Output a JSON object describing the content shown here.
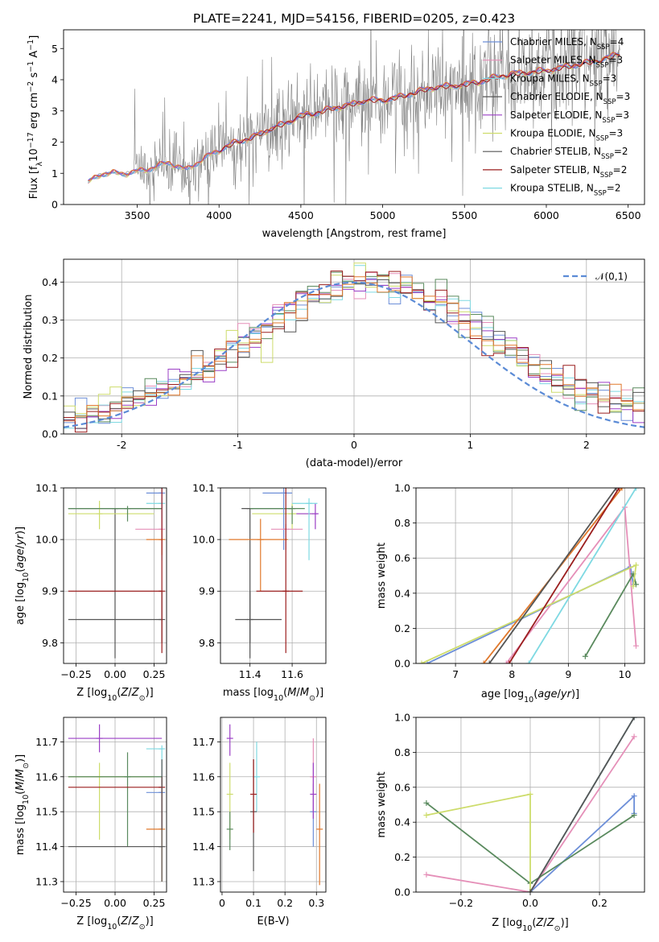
{
  "figure": {
    "title": "PLATE=2241, MJD=54156, FIBERID=0205, z=0.423"
  },
  "colors": {
    "c1": "#6d8fd8",
    "c2": "#e58fb8",
    "c3": "#7ed9e2",
    "c4": "#5a8a5e",
    "c5": "#9b3fc6",
    "c6": "#cddc6b",
    "c7": "#555555",
    "c8": "#9b1e1e",
    "c9": "#e0782b",
    "obs": "#808080",
    "normal": "#5b8bd6"
  },
  "legend_spectrum": [
    "Chabrier MILES, N_SSP=4",
    "Salpeter MILES, N_SSP=3",
    "Kroupa MILES, N_SSP=3",
    "Chabrier ELODIE, N_SSP=3",
    "Salpeter ELODIE, N_SSP=3",
    "Kroupa ELODIE, N_SSP=3",
    "Chabrier STELIB, N_SSP=2",
    "Salpeter STELIB, N_SSP=2",
    "Kroupa STELIB, N_SSP=2"
  ],
  "legend_hist": "𝒩(0,1)",
  "chart_data": [
    {
      "id": "spectrum",
      "type": "line",
      "xlabel": "wavelength [Angstrom, rest frame]",
      "ylabel": "Flux [f_λ10^-17 erg cm^-2 s^-1 A^-1]",
      "xlim": [
        3050,
        6600
      ],
      "ylim": [
        0,
        5.6
      ],
      "xticks": [
        3500,
        4000,
        4500,
        5000,
        5500,
        6000,
        6500
      ],
      "yticks": [
        0,
        1,
        2,
        3,
        4,
        5
      ],
      "model_x": [
        3200,
        3280,
        3400,
        3500,
        3600,
        3700,
        3800,
        3850,
        3950,
        4000,
        4100,
        4200,
        4300,
        4400,
        4500,
        4600,
        4700,
        4800,
        4900,
        5000,
        5100,
        5200,
        5300,
        5400,
        5500,
        5600,
        5700,
        5800,
        5900,
        6000,
        6100,
        6200,
        6300,
        6400,
        6450
      ],
      "model_y": [
        0.7,
        1.0,
        1.0,
        1.05,
        1.2,
        1.35,
        1.1,
        1.3,
        1.6,
        1.75,
        2.0,
        2.15,
        2.4,
        2.6,
        2.85,
        2.95,
        3.1,
        3.2,
        3.35,
        3.35,
        3.45,
        3.6,
        3.75,
        3.8,
        3.85,
        3.95,
        4.1,
        4.2,
        4.25,
        4.3,
        4.4,
        4.5,
        4.6,
        4.75,
        4.85
      ],
      "grid": false,
      "legend_position": "upper right"
    },
    {
      "id": "residual_hist",
      "type": "line",
      "xlabel": "(data-model)/error",
      "ylabel": "Normed distribution",
      "xlim": [
        -2.5,
        2.5
      ],
      "ylim": [
        0,
        0.46
      ],
      "xticks": [
        -2,
        -1,
        0,
        1,
        2
      ],
      "yticks": [
        0.0,
        0.1,
        0.2,
        0.3,
        0.4
      ],
      "normal_sigma": 1,
      "grid": true,
      "legend_position": "upper right"
    },
    {
      "id": "age_vs_Z",
      "type": "scatter",
      "xlabel": "Z [log10(Z/Z☉)]",
      "ylabel": "age  [log10(age/yr)]",
      "xlim": [
        -0.33,
        0.33
      ],
      "ylim": [
        9.76,
        10.1
      ],
      "xticks": [
        -0.25,
        0.0,
        0.25
      ],
      "xtick_labels": [
        "−0.25",
        "0.00",
        "0.25"
      ],
      "yticks": [
        9.8,
        9.9,
        10.0,
        10.1
      ],
      "grid": true,
      "crosses": [
        {
          "c": "c7",
          "x": 0,
          "y": 10.06,
          "x0": -0.3,
          "x1": 0.3,
          "y0": 9.77,
          "y1": 10.06
        },
        {
          "c": "c6",
          "x": -0.1,
          "y": 10.05,
          "x0": -0.3,
          "x1": 0.25,
          "y0": 10.02,
          "y1": 10.075
        },
        {
          "c": "c3",
          "x": 0.3,
          "y": 10.07,
          "x0": 0.2,
          "x1": 0.3,
          "y0": 9.96,
          "y1": 10.08
        },
        {
          "c": "c4",
          "x": 0.08,
          "y": 10.06,
          "x0": -0.3,
          "x1": 0.3,
          "y0": 10.035,
          "y1": 10.065
        },
        {
          "c": "c1",
          "x": 0.3,
          "y": 10.09,
          "x0": 0.2,
          "x1": 0.3,
          "y0": 9.98,
          "y1": 10.1
        },
        {
          "c": "c2",
          "x": 0.3,
          "y": 10.02,
          "x0": 0.13,
          "x1": 0.3,
          "y0": 9.98,
          "y1": 10.04
        },
        {
          "c": "c9",
          "x": 0.3,
          "y": 10.0,
          "x0": 0.2,
          "x1": 0.3,
          "y0": 9.97,
          "y1": 10.02
        },
        {
          "c": "c7",
          "x": 0.3,
          "y": 9.845,
          "x0": -0.3,
          "x1": 0.3,
          "y0": 9.8,
          "y1": 9.9
        },
        {
          "c": "c8",
          "x": 0.3,
          "y": 9.9,
          "x0": -0.3,
          "x1": 0.3,
          "y0": 9.78,
          "y1": 10.1
        }
      ]
    },
    {
      "id": "age_vs_mass",
      "type": "scatter",
      "xlabel": "mass [log10(M/M☉)]",
      "ylabel": "",
      "xlim": [
        11.26,
        11.76
      ],
      "ylim": [
        9.76,
        10.1
      ],
      "xticks": [
        11.4,
        11.6
      ],
      "xtick_labels": [
        "11.4",
        "11.6"
      ],
      "yticks": [
        9.8,
        9.9,
        10.0,
        10.1
      ],
      "grid": true,
      "crosses": [
        {
          "c": "c7",
          "x": 11.4,
          "y": 10.06,
          "x0": 11.36,
          "x1": 11.6,
          "y0": 9.77,
          "y1": 10.06
        },
        {
          "c": "c6",
          "x": 11.6,
          "y": 10.05,
          "x0": 11.41,
          "x1": 11.7,
          "y0": 10.02,
          "y1": 10.07
        },
        {
          "c": "c5",
          "x": 11.71,
          "y": 10.05,
          "x0": 11.62,
          "x1": 11.72,
          "y0": 10.02,
          "y1": 10.07
        },
        {
          "c": "c3",
          "x": 11.68,
          "y": 10.07,
          "x0": 11.6,
          "x1": 11.72,
          "y0": 9.96,
          "y1": 10.08
        },
        {
          "c": "c4",
          "x": 11.6,
          "y": 10.06,
          "x0": 11.4,
          "x1": 11.66,
          "y0": 10.03,
          "y1": 10.065
        },
        {
          "c": "c1",
          "x": 11.56,
          "y": 10.09,
          "x0": 11.46,
          "x1": 11.6,
          "y0": 9.98,
          "y1": 10.1
        },
        {
          "c": "c2",
          "x": 11.57,
          "y": 10.02,
          "x0": 11.5,
          "x1": 11.65,
          "y0": 9.98,
          "y1": 10.03
        },
        {
          "c": "c9",
          "x": 11.45,
          "y": 10.0,
          "x0": 11.3,
          "x1": 11.58,
          "y0": 9.9,
          "y1": 10.04
        },
        {
          "c": "c7",
          "x": 11.4,
          "y": 9.845,
          "x0": 11.33,
          "x1": 11.55,
          "y0": 9.8,
          "y1": 9.9
        },
        {
          "c": "c8",
          "x": 11.57,
          "y": 9.9,
          "x0": 11.43,
          "x1": 11.65,
          "y0": 9.78,
          "y1": 10.1
        }
      ]
    },
    {
      "id": "mass_weight_vs_age",
      "type": "line",
      "xlabel": "age  [log10(age/yr)]",
      "ylabel": "mass weight",
      "xlim": [
        6.3,
        10.35
      ],
      "ylim": [
        0,
        1.0
      ],
      "xticks": [
        7,
        8,
        9,
        10
      ],
      "yticks": [
        0.0,
        0.2,
        0.4,
        0.6,
        0.8,
        1.0
      ],
      "grid": true,
      "series": [
        {
          "c": "c1",
          "x": [
            6.5,
            10.1,
            10.15
          ],
          "y": [
            0.0,
            0.55,
            0.45
          ]
        },
        {
          "c": "c2",
          "x": [
            7.9,
            10.0,
            10.2
          ],
          "y": [
            0.0,
            0.89,
            0.1
          ]
        },
        {
          "c": "c3",
          "x": [
            8.3,
            10.2
          ],
          "y": [
            0.0,
            1.0
          ]
        },
        {
          "c": "c4",
          "x": [
            9.3,
            10.15,
            10.2
          ],
          "y": [
            0.04,
            0.51,
            0.45
          ]
        },
        {
          "c": "c6",
          "x": [
            6.4,
            10.2,
            10.15
          ],
          "y": [
            0.0,
            0.56,
            0.44
          ]
        },
        {
          "c": "c9",
          "x": [
            7.5,
            9.95
          ],
          "y": [
            0.0,
            1.0
          ]
        },
        {
          "c": "c7",
          "x": [
            7.6,
            9.85
          ],
          "y": [
            0.0,
            1.0
          ]
        },
        {
          "c": "c8",
          "x": [
            7.95,
            9.9
          ],
          "y": [
            0.0,
            1.0
          ]
        }
      ]
    },
    {
      "id": "mass_vs_Z",
      "type": "scatter",
      "xlabel": "Z [log10(Z/Z☉)]",
      "ylabel": "mass [log10(M/M☉)]",
      "xlim": [
        -0.33,
        0.33
      ],
      "ylim": [
        11.27,
        11.77
      ],
      "xticks": [
        -0.25,
        0.0,
        0.25
      ],
      "xtick_labels": [
        "−0.25",
        "0.00",
        "0.25"
      ],
      "yticks": [
        11.3,
        11.4,
        11.5,
        11.6,
        11.7
      ],
      "grid": true,
      "crosses": [
        {
          "c": "c5",
          "x": -0.1,
          "y": 11.71,
          "x0": -0.3,
          "x1": 0.3,
          "y0": 11.67,
          "y1": 11.75
        },
        {
          "c": "c3",
          "x": 0.3,
          "y": 11.68,
          "x0": 0.2,
          "x1": 0.3,
          "y0": 11.57,
          "y1": 11.69
        },
        {
          "c": "c6",
          "x": -0.1,
          "y": 11.6,
          "x0": -0.3,
          "x1": 0.25,
          "y0": 11.42,
          "y1": 11.64
        },
        {
          "c": "c4",
          "x": 0.08,
          "y": 11.6,
          "x0": -0.3,
          "x1": 0.3,
          "y0": 11.4,
          "y1": 11.67
        },
        {
          "c": "c1",
          "x": 0.3,
          "y": 11.555,
          "x0": 0.2,
          "x1": 0.3,
          "y0": 11.45,
          "y1": 11.6
        },
        {
          "c": "c9",
          "x": 0.3,
          "y": 11.45,
          "x0": 0.2,
          "x1": 0.3,
          "y0": 11.3,
          "y1": 11.6
        },
        {
          "c": "c8",
          "x": 0.3,
          "y": 11.57,
          "x0": -0.3,
          "x1": 0.3,
          "y0": 11.45,
          "y1": 11.6
        },
        {
          "c": "c7",
          "x": 0.3,
          "y": 11.4,
          "x0": -0.3,
          "x1": 0.3,
          "y0": 11.3,
          "y1": 11.65
        }
      ]
    },
    {
      "id": "mass_vs_EBV",
      "type": "scatter",
      "xlabel": "E(B-V)",
      "ylabel": "",
      "xlim": [
        -0.005,
        0.33
      ],
      "ylim": [
        11.27,
        11.77
      ],
      "xticks": [
        0.0,
        0.1,
        0.2,
        0.3
      ],
      "yticks": [
        11.3,
        11.4,
        11.5,
        11.6,
        11.7
      ],
      "grid": true,
      "crosses": [
        {
          "c": "c5",
          "x": 0.025,
          "y": 11.71,
          "y0": 11.66,
          "y1": 11.75
        },
        {
          "c": "c6",
          "x": 0.025,
          "y": 11.55,
          "y0": 11.42,
          "y1": 11.64
        },
        {
          "c": "c4",
          "x": 0.025,
          "y": 11.45,
          "y0": 11.39,
          "y1": 11.5
        },
        {
          "c": "c3",
          "x": 0.11,
          "y": 11.6,
          "y0": 11.5,
          "y1": 11.7
        },
        {
          "c": "c7",
          "x": 0.1,
          "y": 11.5,
          "y0": 11.33,
          "y1": 11.65
        },
        {
          "c": "c8",
          "x": 0.1,
          "y": 11.55,
          "y0": 11.44,
          "y1": 11.65
        },
        {
          "c": "c1",
          "x": 0.29,
          "y": 11.5,
          "y0": 11.4,
          "y1": 11.58
        },
        {
          "c": "c2",
          "x": 0.29,
          "y": 11.6,
          "y0": 11.5,
          "y1": 11.71
        },
        {
          "c": "c5",
          "x": 0.29,
          "y": 11.55,
          "y0": 11.48,
          "y1": 11.64
        },
        {
          "c": "c9",
          "x": 0.31,
          "y": 11.45,
          "y0": 11.29,
          "y1": 11.58
        }
      ]
    },
    {
      "id": "mass_weight_vs_Z",
      "type": "line",
      "xlabel": "Z [log10(Z/Z☉)]",
      "ylabel": "mass weight",
      "xlim": [
        -0.33,
        0.33
      ],
      "ylim": [
        0,
        1.0
      ],
      "xticks": [
        -0.2,
        0.0,
        0.2
      ],
      "xtick_labels": [
        "−0.2",
        "0.0",
        "0.2"
      ],
      "yticks": [
        0.0,
        0.2,
        0.4,
        0.6,
        0.8,
        1.0
      ],
      "grid": true,
      "series": [
        {
          "c": "c1",
          "x": [
            0.0,
            0.3,
            0.3
          ],
          "y": [
            0.0,
            0.55,
            0.45
          ]
        },
        {
          "c": "c2",
          "x": [
            -0.3,
            0.0,
            0.3
          ],
          "y": [
            0.1,
            0.0,
            0.89
          ]
        },
        {
          "c": "c3",
          "x": [
            0.0,
            0.3
          ],
          "y": [
            0.0,
            1.0
          ]
        },
        {
          "c": "c4",
          "x": [
            -0.3,
            0.0,
            0.3
          ],
          "y": [
            0.51,
            0.05,
            0.44
          ]
        },
        {
          "c": "c6",
          "x": [
            -0.3,
            0.0,
            0.0
          ],
          "y": [
            0.44,
            0.56,
            0.0
          ]
        },
        {
          "c": "c7",
          "x": [
            0.0,
            0.3
          ],
          "y": [
            0.0,
            1.0
          ]
        }
      ]
    }
  ]
}
